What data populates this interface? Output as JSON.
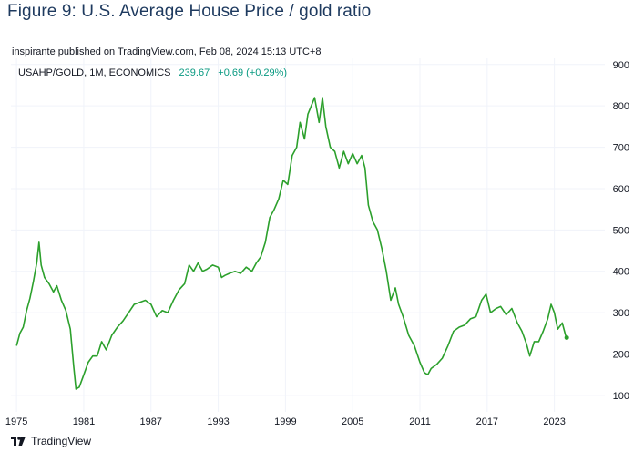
{
  "figure_title": "Figure 9: U.S. Average House Price / gold ratio",
  "published": "inspirante published on TradingView.com, Feb 08, 2024 15:13 UTC+8",
  "legend": {
    "symbol": "USAHP/GOLD, 1M, ECONOMICS",
    "last": "239.67",
    "change": "+0.69 (+0.29%)"
  },
  "brand": "TradingView",
  "colors": {
    "line": "#2ca02c",
    "grid": "#f0f3fa",
    "axis_text": "#131722"
  },
  "chart_data": {
    "type": "line",
    "title": "",
    "xlabel": "",
    "ylabel": "",
    "x_ticks": [
      "1975",
      "1981",
      "1987",
      "1993",
      "1999",
      "2005",
      "2011",
      "2017",
      "2023"
    ],
    "y_ticks": [
      100,
      200,
      300,
      400,
      500,
      600,
      700,
      800,
      900
    ],
    "xlim": [
      1974.5,
      2027.5
    ],
    "ylim": [
      60,
      915
    ],
    "grid": true,
    "y_axis_side": "right",
    "series": [
      {
        "name": "USAHP/GOLD",
        "points": [
          [
            1975.0,
            220
          ],
          [
            1975.3,
            250
          ],
          [
            1975.6,
            265
          ],
          [
            1975.9,
            305
          ],
          [
            1976.2,
            335
          ],
          [
            1976.5,
            375
          ],
          [
            1976.8,
            420
          ],
          [
            1977.0,
            470
          ],
          [
            1977.2,
            415
          ],
          [
            1977.5,
            385
          ],
          [
            1977.9,
            370
          ],
          [
            1978.3,
            350
          ],
          [
            1978.6,
            365
          ],
          [
            1979.0,
            330
          ],
          [
            1979.4,
            305
          ],
          [
            1979.8,
            260
          ],
          [
            1980.1,
            170
          ],
          [
            1980.3,
            115
          ],
          [
            1980.6,
            120
          ],
          [
            1981.0,
            150
          ],
          [
            1981.4,
            180
          ],
          [
            1981.8,
            195
          ],
          [
            1982.2,
            195
          ],
          [
            1982.6,
            230
          ],
          [
            1983.0,
            210
          ],
          [
            1983.5,
            245
          ],
          [
            1984.0,
            265
          ],
          [
            1984.5,
            280
          ],
          [
            1985.0,
            300
          ],
          [
            1985.5,
            320
          ],
          [
            1986.0,
            325
          ],
          [
            1986.5,
            330
          ],
          [
            1987.0,
            320
          ],
          [
            1987.5,
            290
          ],
          [
            1988.0,
            305
          ],
          [
            1988.5,
            300
          ],
          [
            1989.0,
            330
          ],
          [
            1989.5,
            355
          ],
          [
            1990.0,
            370
          ],
          [
            1990.4,
            415
          ],
          [
            1990.8,
            400
          ],
          [
            1991.2,
            420
          ],
          [
            1991.6,
            400
          ],
          [
            1992.0,
            405
          ],
          [
            1992.5,
            415
          ],
          [
            1993.0,
            410
          ],
          [
            1993.3,
            385
          ],
          [
            1993.6,
            390
          ],
          [
            1994.0,
            395
          ],
          [
            1994.5,
            400
          ],
          [
            1995.0,
            395
          ],
          [
            1995.5,
            410
          ],
          [
            1996.0,
            400
          ],
          [
            1996.4,
            420
          ],
          [
            1996.8,
            435
          ],
          [
            1997.2,
            470
          ],
          [
            1997.6,
            530
          ],
          [
            1998.0,
            550
          ],
          [
            1998.4,
            575
          ],
          [
            1998.8,
            620
          ],
          [
            1999.2,
            610
          ],
          [
            1999.6,
            680
          ],
          [
            2000.0,
            700
          ],
          [
            2000.3,
            760
          ],
          [
            2000.7,
            720
          ],
          [
            2001.0,
            780
          ],
          [
            2001.3,
            800
          ],
          [
            2001.6,
            820
          ],
          [
            2002.0,
            760
          ],
          [
            2002.3,
            820
          ],
          [
            2002.6,
            750
          ],
          [
            2003.0,
            700
          ],
          [
            2003.4,
            690
          ],
          [
            2003.8,
            650
          ],
          [
            2004.2,
            690
          ],
          [
            2004.6,
            660
          ],
          [
            2005.0,
            685
          ],
          [
            2005.4,
            660
          ],
          [
            2005.8,
            680
          ],
          [
            2006.1,
            650
          ],
          [
            2006.4,
            560
          ],
          [
            2006.8,
            520
          ],
          [
            2007.2,
            500
          ],
          [
            2007.6,
            455
          ],
          [
            2008.0,
            400
          ],
          [
            2008.4,
            330
          ],
          [
            2008.8,
            360
          ],
          [
            2009.1,
            320
          ],
          [
            2009.5,
            290
          ],
          [
            2010.0,
            245
          ],
          [
            2010.5,
            220
          ],
          [
            2011.0,
            180
          ],
          [
            2011.4,
            155
          ],
          [
            2011.7,
            150
          ],
          [
            2012.0,
            165
          ],
          [
            2012.5,
            175
          ],
          [
            2013.0,
            190
          ],
          [
            2013.5,
            220
          ],
          [
            2014.0,
            255
          ],
          [
            2014.5,
            265
          ],
          [
            2015.0,
            270
          ],
          [
            2015.5,
            285
          ],
          [
            2016.0,
            290
          ],
          [
            2016.5,
            330
          ],
          [
            2016.9,
            345
          ],
          [
            2017.3,
            300
          ],
          [
            2017.8,
            310
          ],
          [
            2018.2,
            315
          ],
          [
            2018.7,
            295
          ],
          [
            2019.2,
            310
          ],
          [
            2019.7,
            275
          ],
          [
            2020.1,
            255
          ],
          [
            2020.5,
            225
          ],
          [
            2020.8,
            195
          ],
          [
            2021.2,
            230
          ],
          [
            2021.6,
            230
          ],
          [
            2022.0,
            255
          ],
          [
            2022.4,
            285
          ],
          [
            2022.7,
            320
          ],
          [
            2023.0,
            300
          ],
          [
            2023.3,
            260
          ],
          [
            2023.7,
            275
          ],
          [
            2024.0,
            245
          ],
          [
            2024.1,
            239.67
          ]
        ]
      }
    ]
  }
}
